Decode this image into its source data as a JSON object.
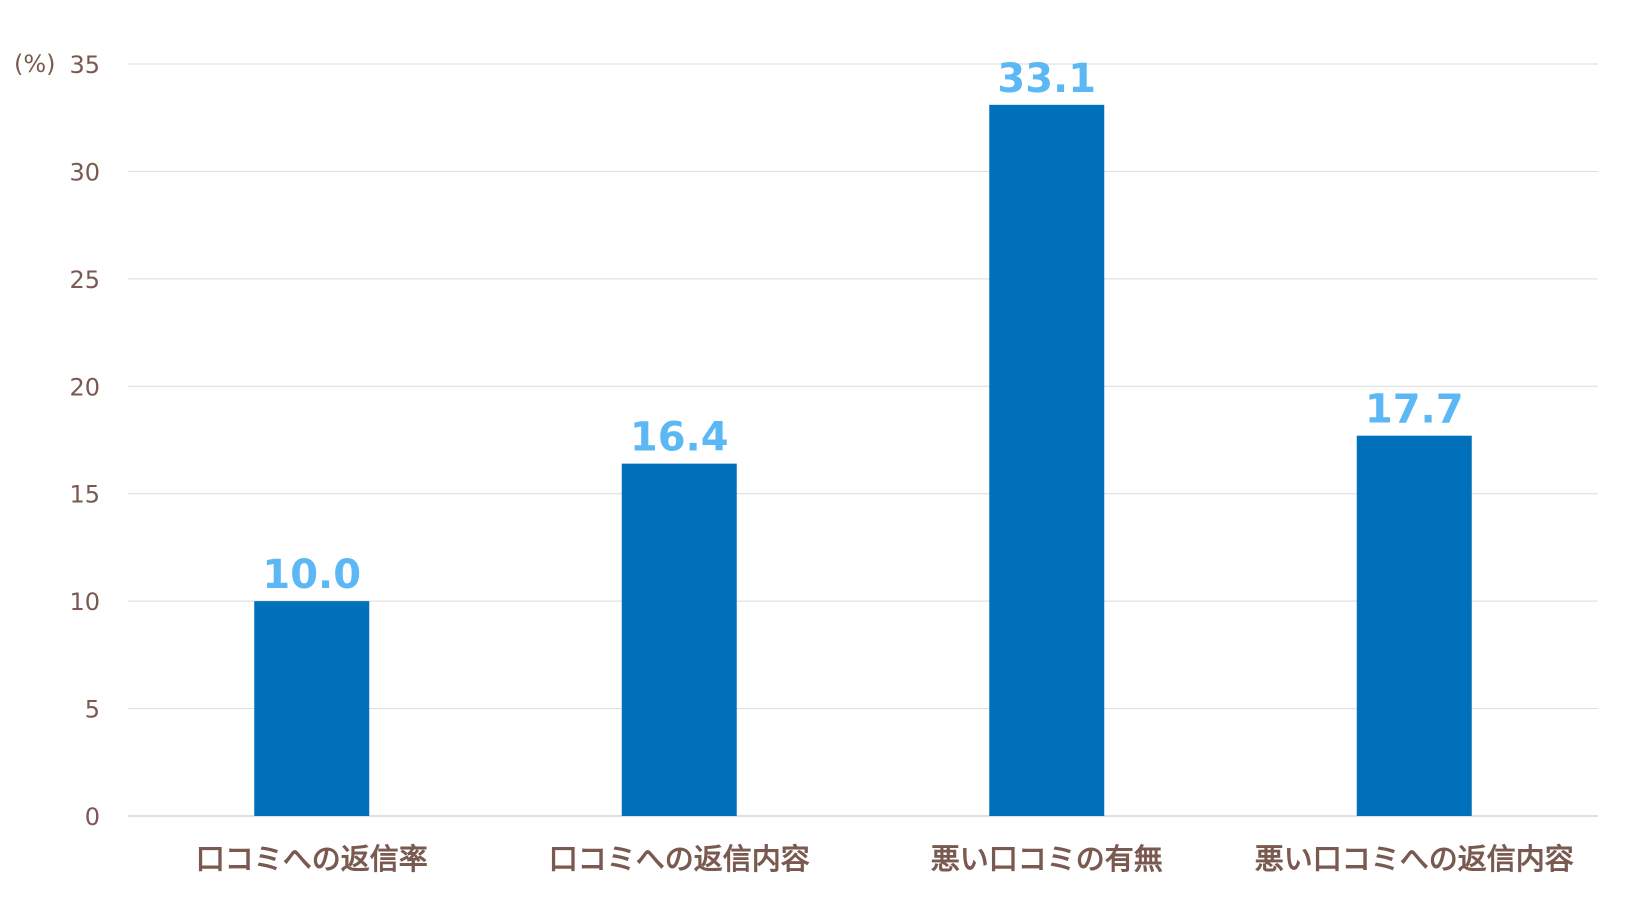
{
  "chart_data": {
    "type": "bar",
    "unit_label": "(%)",
    "categories": [
      "口コミへの返信率",
      "口コミへの返信内容",
      "悪い口コミの有無",
      "悪い口コミへの返信内容"
    ],
    "values": [
      10.0,
      16.4,
      33.1,
      17.7
    ],
    "value_labels": [
      "10.0",
      "16.4",
      "33.1",
      "17.7"
    ],
    "yticks": [
      "0",
      "5",
      "10",
      "15",
      "20",
      "25",
      "30",
      "35"
    ],
    "ylim": [
      0,
      35
    ],
    "grid": true,
    "legend": "none",
    "colors": {
      "bar": "#0070BA",
      "data_label": "#5BB8F5",
      "axis_text": "#7A5A50",
      "gridline": "#E0E0E0"
    }
  }
}
